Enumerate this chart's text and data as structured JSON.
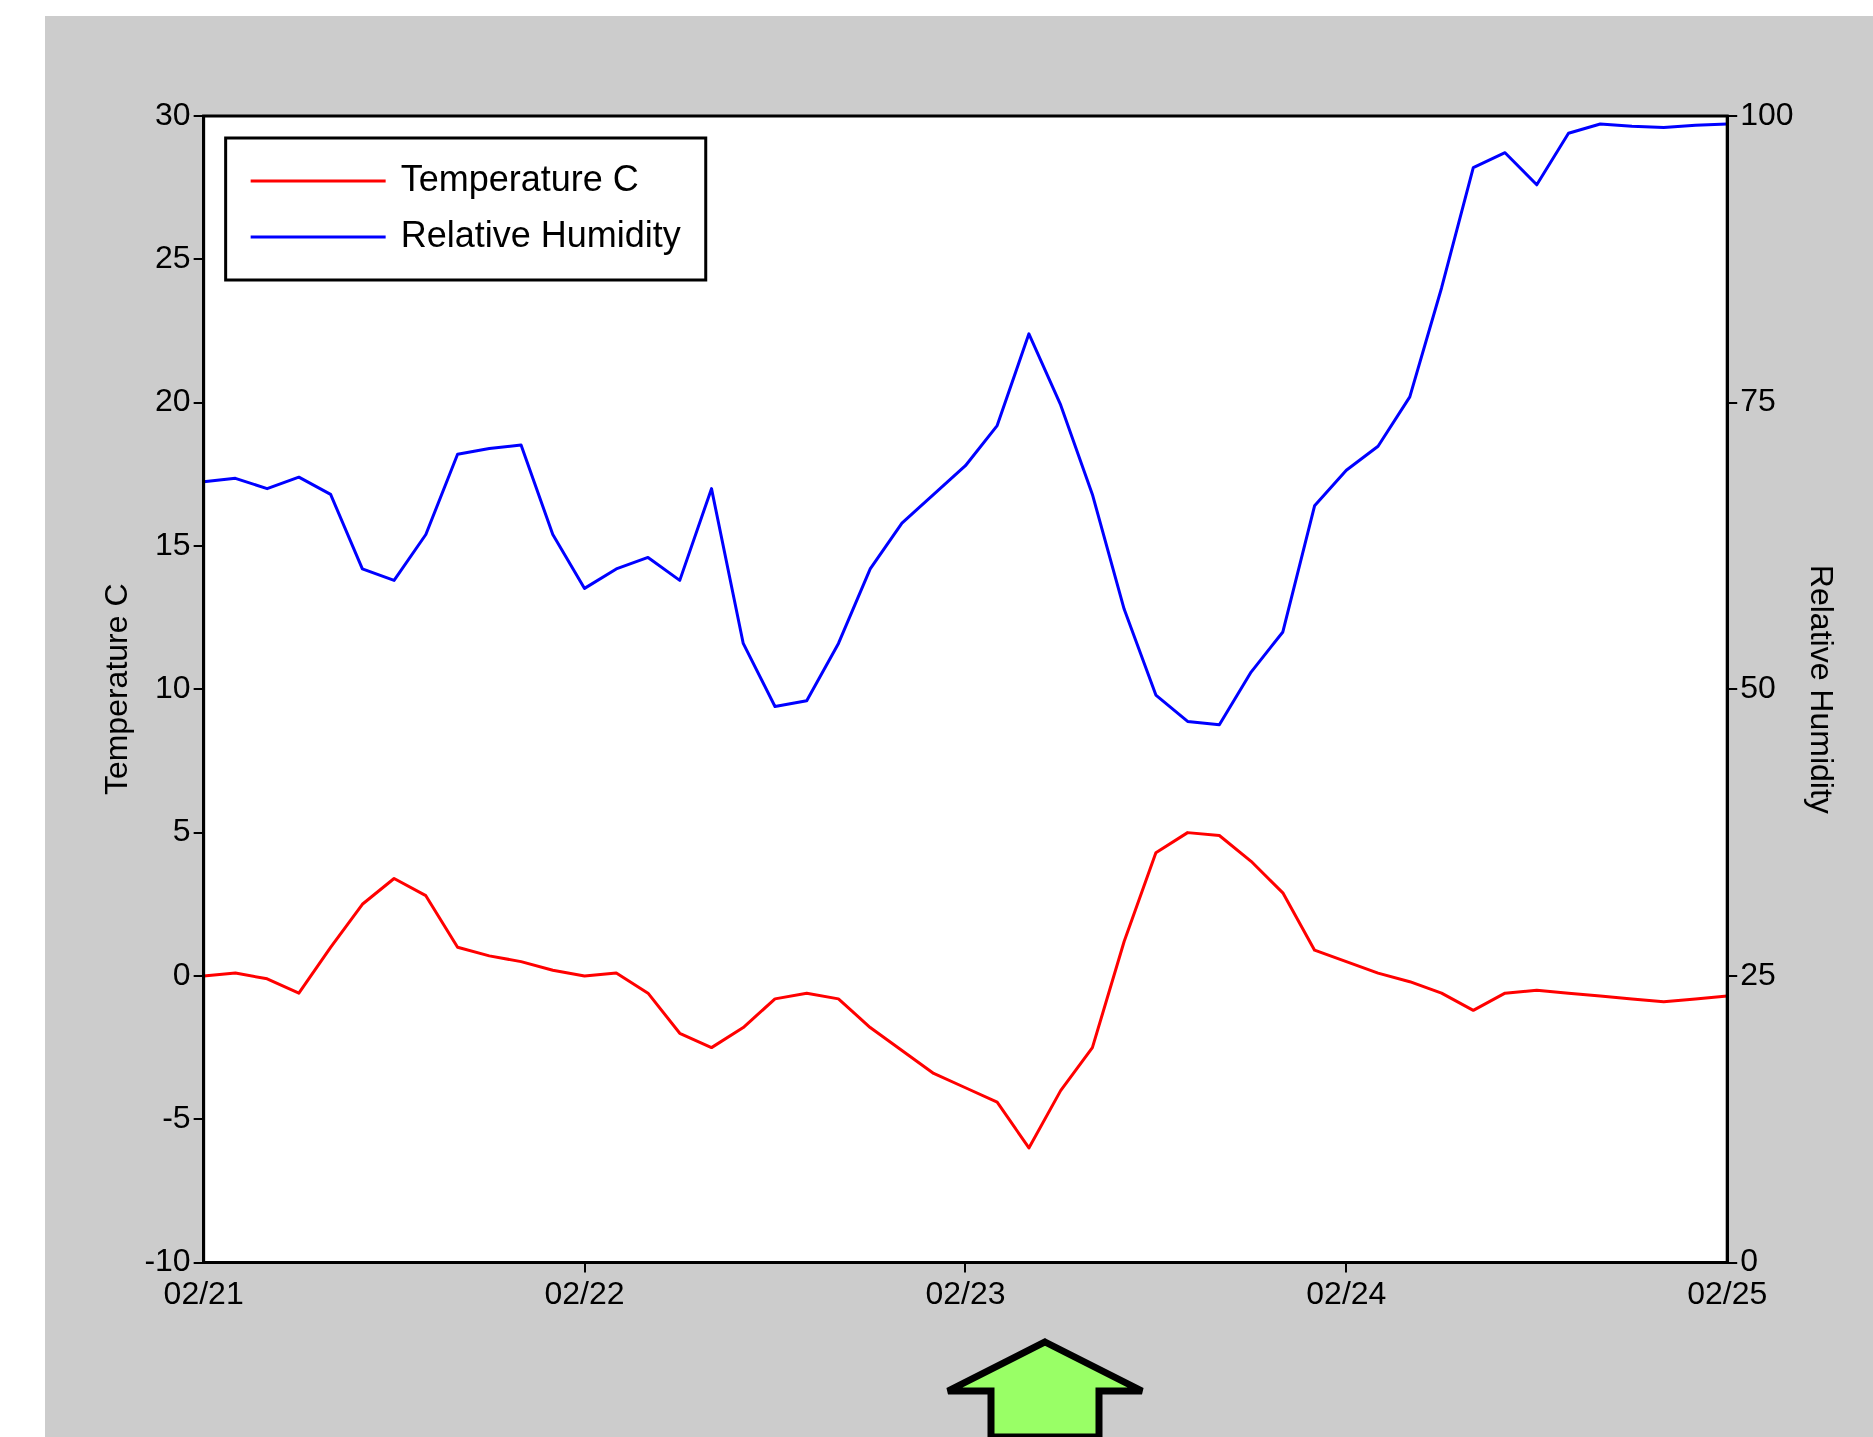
{
  "chart_data": {
    "type": "line",
    "ylabel": "Temperature C",
    "y2label": "Relative Humidity",
    "categories": [
      "02/21",
      null,
      null,
      null,
      null,
      null,
      null,
      null,
      null,
      null,
      null,
      null,
      "02/22",
      null,
      null,
      null,
      null,
      null,
      null,
      null,
      null,
      null,
      null,
      null,
      "02/23",
      null,
      null,
      null,
      null,
      null,
      null,
      null,
      null,
      null,
      null,
      null,
      "02/24",
      null,
      null,
      null,
      null,
      null,
      null,
      null,
      null,
      null,
      null,
      null,
      "02/25"
    ],
    "ylim": [
      -10,
      30
    ],
    "yticks": [
      -10,
      -5,
      0,
      5,
      10,
      15,
      20,
      25,
      30
    ],
    "y2lim": [
      0,
      100
    ],
    "y2ticks": [
      0,
      25,
      50,
      75,
      100
    ],
    "legend": "top left",
    "grid": false,
    "series": [
      {
        "name": "Temperature C",
        "color": "#ff0000",
        "values": [
          0,
          0.1,
          -0.1,
          -0.6,
          1.0,
          2.5,
          3.4,
          2.8,
          1.0,
          0.7,
          0.5,
          0.2,
          0,
          0.1,
          -0.6,
          -2.0,
          -2.5,
          -1.8,
          -0.8,
          -0.6,
          -0.8,
          -1.8,
          -2.6,
          -3.4,
          -3.9,
          -4.4,
          -6,
          -4.0,
          -2.5,
          1.2,
          4.3,
          5.0,
          4.9,
          4.0,
          2.9,
          0.9,
          0.5,
          0.1,
          -0.2,
          -0.6,
          -1.2,
          -0.6,
          -0.5,
          -0.6,
          -0.7,
          -0.8,
          -0.9,
          -0.8,
          -0.7
        ]
      },
      {
        "name": "Relative Humidity",
        "color": "#0000ff",
        "axis": "y2",
        "values": [
          68.1,
          68.4,
          67.5,
          68.5,
          67.0,
          60.5,
          59.5,
          63.5,
          70.5,
          71.0,
          71.3,
          63.5,
          58.8,
          60.5,
          61.5,
          59.5,
          67.5,
          54.0,
          48.5,
          49.0,
          54.0,
          60.5,
          64.5,
          67.0,
          69.5,
          73.0,
          81,
          74.8,
          67.0,
          57.0,
          49.5,
          47.2,
          46.9,
          51.5,
          55.0,
          66.0,
          69.1,
          71.2,
          75.5,
          85.0,
          95.5,
          96.8,
          94.0,
          98.5,
          99.3,
          99.1,
          99.0,
          99.2,
          99.3
        ]
      }
    ]
  }
}
